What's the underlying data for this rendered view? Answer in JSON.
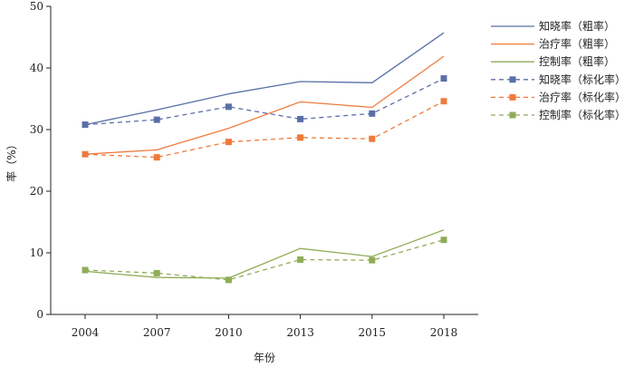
{
  "chart_data": {
    "type": "line",
    "title": "",
    "xlabel": "年份",
    "ylabel": "率（%）",
    "categories": [
      "2004",
      "2007",
      "2010",
      "2013",
      "2015",
      "2018"
    ],
    "ylim": [
      0,
      50
    ],
    "yticks": [
      0,
      10,
      20,
      30,
      40,
      50
    ],
    "grid": false,
    "legend_position": "top-right",
    "series": [
      {
        "name": "知晓率（粗率）",
        "values": [
          30.8,
          33.2,
          35.8,
          37.8,
          37.6,
          45.7
        ],
        "color": "#5a6fa8",
        "dash": false,
        "marker": false
      },
      {
        "name": "治疗率（粗率）",
        "values": [
          26.0,
          26.7,
          30.2,
          34.5,
          33.6,
          41.9
        ],
        "color": "#ee7b3c",
        "dash": false,
        "marker": false
      },
      {
        "name": "控制率（粗率）",
        "values": [
          7.0,
          6.0,
          5.9,
          10.7,
          9.4,
          13.7
        ],
        "color": "#8fac57",
        "dash": false,
        "marker": false
      },
      {
        "name": "知晓率（标化率）",
        "values": [
          30.8,
          31.6,
          33.7,
          31.7,
          32.6,
          38.3
        ],
        "color": "#5a6fa8",
        "dash": true,
        "marker": true
      },
      {
        "name": "治疗率（标化率）",
        "values": [
          26.0,
          25.5,
          28.0,
          28.7,
          28.5,
          34.6
        ],
        "color": "#ee7b3c",
        "dash": true,
        "marker": true
      },
      {
        "name": "控制率（标化率）",
        "values": [
          7.2,
          6.7,
          5.6,
          8.9,
          8.8,
          12.1
        ],
        "color": "#8fac57",
        "dash": true,
        "marker": true
      }
    ]
  }
}
